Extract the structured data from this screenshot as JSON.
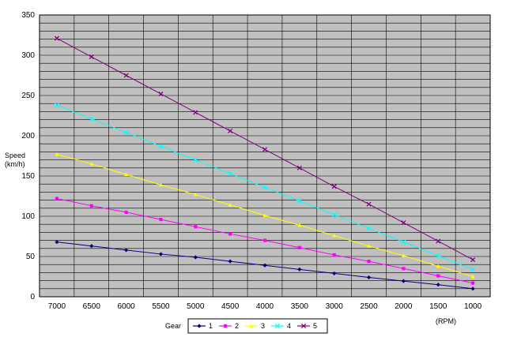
{
  "chart_data": {
    "type": "line",
    "ylabel_line1": "Speed",
    "ylabel_line2": "(km/h)",
    "xlabel": "(RPM)",
    "legend_title": "Gear",
    "legend_position": "bottom",
    "grid": true,
    "plot_background": "#c0c0c0",
    "x": [
      7000,
      6500,
      6000,
      5500,
      5000,
      4500,
      4000,
      3500,
      3000,
      2500,
      2000,
      1500,
      1000
    ],
    "xlim": [
      7000,
      1000
    ],
    "ylim": [
      0,
      350
    ],
    "yticks": [
      0,
      50,
      100,
      150,
      200,
      250,
      300,
      350
    ],
    "series": [
      {
        "name": "1",
        "color": "#000080",
        "marker": "diamond",
        "values": [
          68,
          63,
          58,
          53,
          49,
          44,
          39,
          34,
          29,
          24,
          19.5,
          15,
          10
        ]
      },
      {
        "name": "2",
        "color": "#ff00ff",
        "marker": "square",
        "values": [
          122,
          113,
          105,
          96,
          87,
          78,
          70,
          61,
          52,
          44,
          35,
          26,
          17
        ]
      },
      {
        "name": "3",
        "color": "#ffff00",
        "marker": "triangle",
        "values": [
          177,
          165,
          152,
          139,
          127,
          114,
          101,
          89,
          76,
          63,
          51,
          38,
          25
        ]
      },
      {
        "name": "4",
        "color": "#00ffff",
        "marker": "x",
        "values": [
          238,
          221,
          204,
          187,
          170,
          153,
          136,
          119,
          102,
          85,
          68,
          51,
          34
        ]
      },
      {
        "name": "5",
        "color": "#800080",
        "marker": "x",
        "values": [
          321,
          298,
          275,
          252,
          229,
          206,
          183,
          160,
          137,
          115,
          92,
          69,
          46
        ]
      }
    ]
  }
}
